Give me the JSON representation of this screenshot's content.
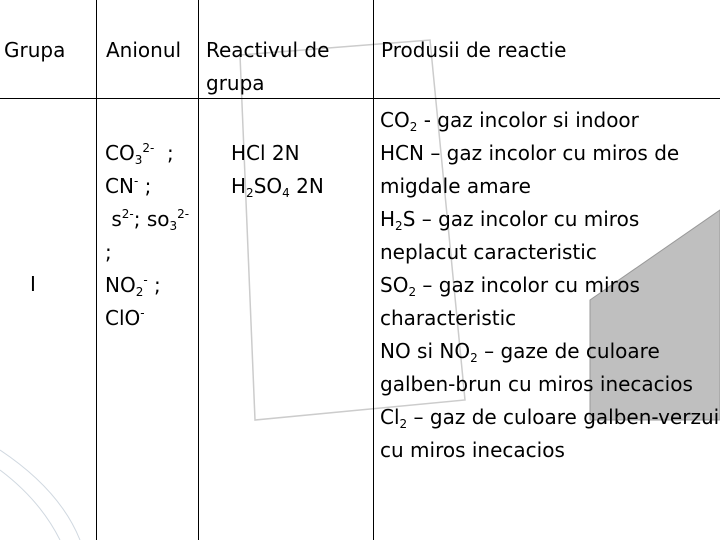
{
  "table": {
    "headers": [
      "Grupa",
      "Anionul",
      "Reactivul de grupa",
      "Produsii de reactie"
    ],
    "row": {
      "group": "I",
      "anions": [
        "CO3 2- ;",
        "CN- ;",
        "s2- ; so3 2-",
        ";",
        "NO2 - ;",
        "ClO-"
      ],
      "reagents": [
        "HCl 2N",
        "H2SO4 2N"
      ],
      "products": [
        "CO2 - gaz incolor si indoor",
        "HCN – gaz incolor cu miros de",
        "migdale amare",
        "H2S – gaz incolor cu miros",
        "neplacut caracteristic",
        "SO2 – gaz incolor cu miros",
        "characteristic",
        "NO si NO2 – gaze de culoare",
        "galben-brun cu miros inecacios",
        "Cl2 – gaz de culoare galben-verzui",
        "cu miros inecacios"
      ]
    }
  },
  "colors": {
    "lines": "#000000",
    "decor_gray": "#bfbfbf"
  }
}
